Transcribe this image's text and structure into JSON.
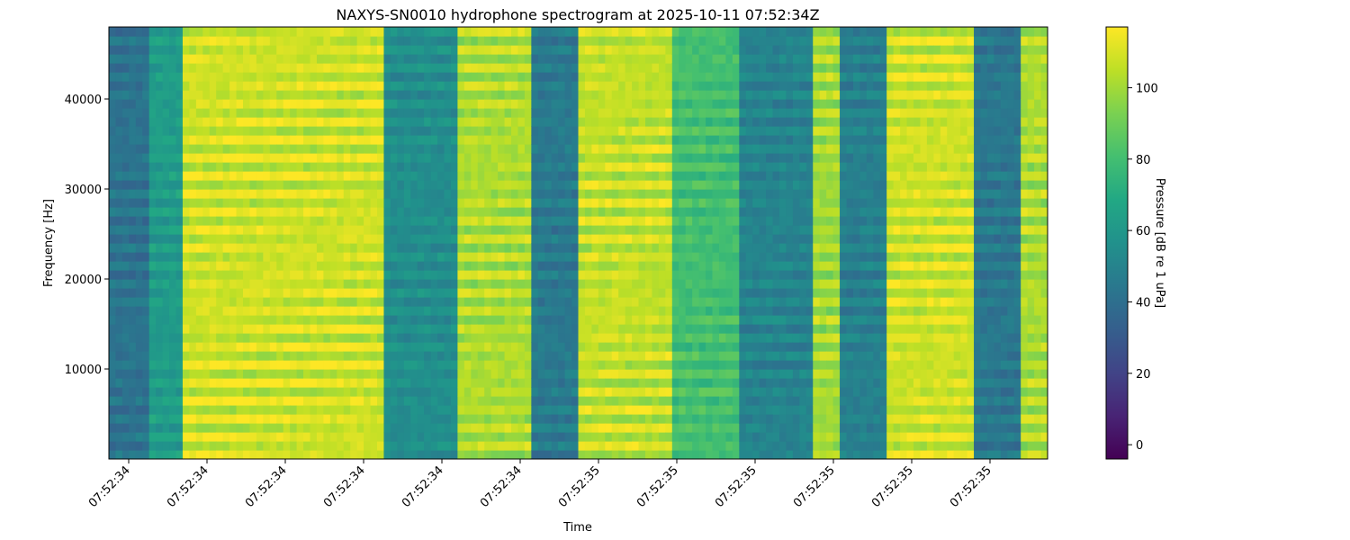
{
  "chart_data": {
    "type": "heatmap",
    "title": "NAXYS-SN0010 hydrophone spectrogram at 2025-10-11 07:52:34Z",
    "xlabel": "Time",
    "ylabel": "Frequency [Hz]",
    "colorbar_label": "Pressure [dB re 1 uPa]",
    "colormap": "viridis",
    "clim": [
      -4,
      117
    ],
    "ylim": [
      0,
      48000
    ],
    "x_tick_labels": [
      "07:52:34",
      "07:52:34",
      "07:52:34",
      "07:52:34",
      "07:52:34",
      "07:52:34",
      "07:52:35",
      "07:52:35",
      "07:52:35",
      "07:52:35",
      "07:52:35",
      "07:52:35"
    ],
    "y_ticks": [
      10000,
      20000,
      30000,
      40000
    ],
    "colorbar_ticks": [
      0,
      20,
      40,
      60,
      80,
      100
    ],
    "grid": false,
    "description_of_pattern": "alternating vertical bands of high (~100-115 dB) and low (~40-55 dB) pressure across time, with horizontal harmonic striations",
    "time_bands": [
      {
        "start": 0.0,
        "end": 0.04,
        "level": 42
      },
      {
        "start": 0.04,
        "end": 0.08,
        "level": 62
      },
      {
        "start": 0.08,
        "end": 0.29,
        "level": 108
      },
      {
        "start": 0.29,
        "end": 0.37,
        "level": 55
      },
      {
        "start": 0.37,
        "end": 0.45,
        "level": 102
      },
      {
        "start": 0.45,
        "end": 0.5,
        "level": 45
      },
      {
        "start": 0.5,
        "end": 0.6,
        "level": 106
      },
      {
        "start": 0.6,
        "end": 0.67,
        "level": 80
      },
      {
        "start": 0.67,
        "end": 0.75,
        "level": 50
      },
      {
        "start": 0.75,
        "end": 0.78,
        "level": 100
      },
      {
        "start": 0.78,
        "end": 0.83,
        "level": 48
      },
      {
        "start": 0.83,
        "end": 0.92,
        "level": 108
      },
      {
        "start": 0.92,
        "end": 0.97,
        "level": 44
      },
      {
        "start": 0.97,
        "end": 1.0,
        "level": 102
      }
    ]
  }
}
